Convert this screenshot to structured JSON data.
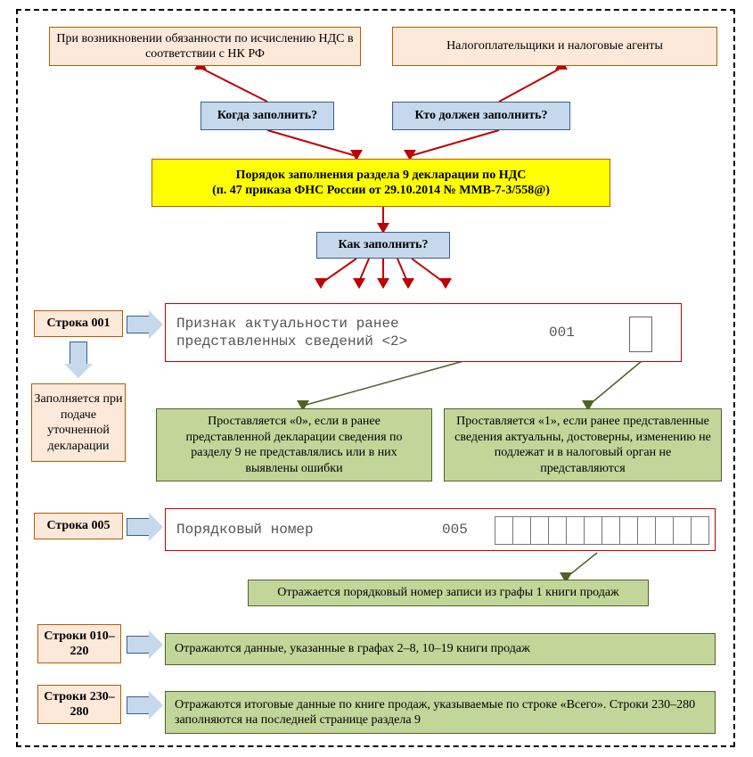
{
  "colors": {
    "peach_fill": "#fce9da",
    "peach_border": "#b85c00",
    "steel_fill": "#c6d8ec",
    "steel_border": "#365f91",
    "yellow_fill": "#ffff00",
    "green_fill": "#c2d69a",
    "green_border": "#4f6228",
    "form_border": "#c00000",
    "arrow_red": "#c00000",
    "arrow_green": "#4f6228"
  },
  "top": {
    "left_peach": "При возникновении обязанности по исчислению НДС в соответствии с НК РФ",
    "right_peach": "Налогоплательщики и налоговые агенты",
    "when": "Когда заполнить?",
    "who": "Кто должен заполнить?",
    "order_title_1": "Порядок заполнения раздела 9 декларации по НДС",
    "order_title_2": "(п. 47 приказа ФНС России от 29.10.2014 № ММВ-7-3/558@)",
    "how": "Как заполнить?"
  },
  "s001": {
    "label": "Строка 001",
    "sub": "Заполняется при подаче уточненной декларации",
    "form_text": "Признак актуальности ранее представленных сведений <2>",
    "form_code": "001",
    "green_left": "Проставляется «0», если в ранее представленной декларации сведения по разделу 9 не представлялись или в них выявлены ошибки",
    "green_right": "Проставляется «1», если ранее представленные сведения актуальны, достоверны, изменению не подлежат и в налоговый орган не представляются"
  },
  "s005": {
    "label": "Строка 005",
    "form_text": "Порядковый номер",
    "form_code": "005",
    "cells": 12,
    "green": "Отражается порядковый номер записи из графы 1 книги продаж"
  },
  "s010_220": {
    "label": "Строки 010–220",
    "green": "Отражаются данные, указанные в графах 2–8, 10–19 книги продаж"
  },
  "s230_280": {
    "label": "Строки 230–280",
    "green": "Отражаются итоговые данные по книге продаж, указываемые по строке «Всего». Строки  230–280 заполняются на последней странице раздела 9"
  },
  "font": {
    "base": 14,
    "bold": 14,
    "form": 16
  }
}
